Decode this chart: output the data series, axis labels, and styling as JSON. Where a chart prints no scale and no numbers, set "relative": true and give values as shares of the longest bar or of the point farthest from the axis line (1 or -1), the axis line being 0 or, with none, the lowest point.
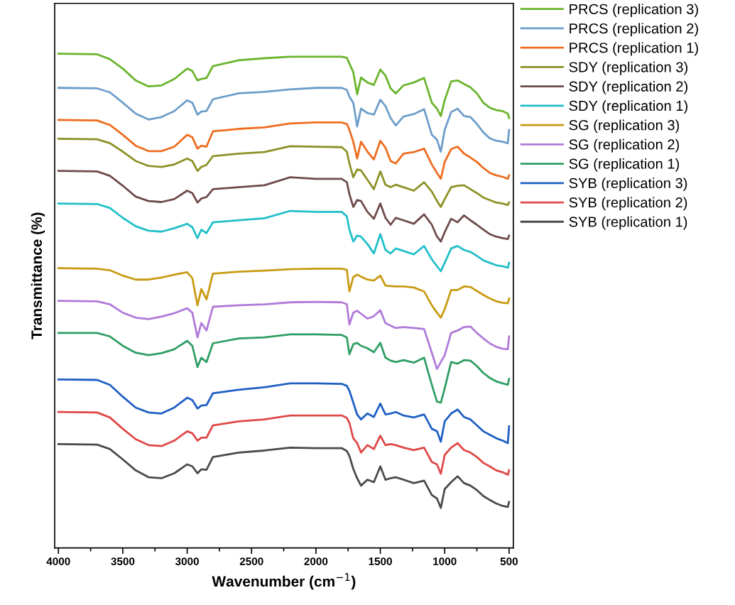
{
  "chart_data": {
    "type": "line",
    "xlabel": "Wavenumber (cm$^{−1}$)",
    "ylabel": "Transmittance (%)",
    "relative": true,
    "legend": "right",
    "tick_labels": "x",
    "line_style": "solid",
    "xlim": [
      4029,
      467
    ],
    "xticks": [
      4000,
      {
        "value": 3750,
        "label": null
      },
      3500,
      {
        "value": 3250,
        "label": null
      },
      3000,
      {
        "value": 2750,
        "label": null
      },
      2500,
      {
        "value": 2250,
        "label": null
      },
      2000,
      {
        "value": 1750,
        "label": null
      },
      1500,
      {
        "value": 1250,
        "label": null
      },
      1000,
      {
        "value": 750,
        "label": null
      },
      500
    ],
    "x": [
      4000,
      3700,
      3600,
      3500,
      3400,
      3300,
      3200,
      3100,
      3000,
      2960,
      2920,
      2890,
      2850,
      2800,
      2600,
      2400,
      2200,
      2000,
      1800,
      1760,
      1740,
      1710,
      1680,
      1650,
      1600,
      1550,
      1500,
      1460,
      1420,
      1380,
      1320,
      1240,
      1160,
      1100,
      1060,
      1030,
      1000,
      950,
      900,
      850,
      800,
      750,
      700,
      650,
      600,
      550,
      510,
      500
    ],
    "series": [
      {
        "name": "PRCS (replication 3)",
        "color": "#6ab42d",
        "values": [
          1.0,
          0.999,
          0.989,
          0.97,
          0.946,
          0.934,
          0.936,
          0.949,
          0.97,
          0.965,
          0.946,
          0.949,
          0.951,
          0.975,
          0.987,
          0.991,
          0.994,
          0.994,
          0.994,
          0.992,
          0.98,
          0.963,
          0.918,
          0.952,
          0.942,
          0.937,
          0.968,
          0.956,
          0.93,
          0.92,
          0.936,
          0.942,
          0.951,
          0.901,
          0.889,
          0.874,
          0.906,
          0.944,
          0.946,
          0.939,
          0.932,
          0.92,
          0.901,
          0.891,
          0.886,
          0.884,
          0.879,
          0.87
        ]
      },
      {
        "name": "PRCS (replication 2)",
        "color": "#6c9dc9",
        "values": [
          0.931,
          0.93,
          0.922,
          0.901,
          0.879,
          0.867,
          0.872,
          0.884,
          0.906,
          0.901,
          0.877,
          0.883,
          0.884,
          0.908,
          0.92,
          0.923,
          0.928,
          0.931,
          0.931,
          0.927,
          0.913,
          0.901,
          0.853,
          0.889,
          0.88,
          0.877,
          0.907,
          0.894,
          0.87,
          0.855,
          0.873,
          0.878,
          0.888,
          0.836,
          0.826,
          0.802,
          0.846,
          0.882,
          0.889,
          0.874,
          0.872,
          0.858,
          0.841,
          0.829,
          0.824,
          0.822,
          0.819,
          0.846
        ]
      },
      {
        "name": "PRCS (replication 1)",
        "color": "#ee6c1e",
        "values": [
          0.866,
          0.865,
          0.856,
          0.836,
          0.814,
          0.803,
          0.803,
          0.812,
          0.836,
          0.831,
          0.808,
          0.814,
          0.812,
          0.843,
          0.848,
          0.851,
          0.859,
          0.861,
          0.861,
          0.858,
          0.846,
          0.822,
          0.788,
          0.822,
          0.802,
          0.786,
          0.824,
          0.81,
          0.783,
          0.778,
          0.798,
          0.801,
          0.808,
          0.776,
          0.759,
          0.747,
          0.781,
          0.807,
          0.812,
          0.798,
          0.79,
          0.781,
          0.769,
          0.759,
          0.754,
          0.751,
          0.747,
          0.754
        ]
      },
      {
        "name": "SDY (replication 3)",
        "color": "#8c9125",
        "values": [
          0.828,
          0.827,
          0.819,
          0.802,
          0.783,
          0.773,
          0.771,
          0.776,
          0.788,
          0.783,
          0.763,
          0.771,
          0.775,
          0.793,
          0.798,
          0.801,
          0.813,
          0.812,
          0.811,
          0.802,
          0.778,
          0.75,
          0.766,
          0.764,
          0.745,
          0.726,
          0.762,
          0.735,
          0.73,
          0.735,
          0.73,
          0.723,
          0.74,
          0.721,
          0.702,
          0.69,
          0.706,
          0.73,
          0.733,
          0.734,
          0.726,
          0.718,
          0.709,
          0.704,
          0.699,
          0.697,
          0.694,
          0.699
        ]
      },
      {
        "name": "SDY (replication 2)",
        "color": "#6e4a4a",
        "values": [
          0.763,
          0.762,
          0.753,
          0.733,
          0.711,
          0.702,
          0.7,
          0.706,
          0.723,
          0.718,
          0.699,
          0.707,
          0.71,
          0.726,
          0.73,
          0.734,
          0.75,
          0.747,
          0.747,
          0.74,
          0.716,
          0.69,
          0.704,
          0.702,
          0.68,
          0.666,
          0.697,
          0.668,
          0.654,
          0.668,
          0.663,
          0.656,
          0.675,
          0.654,
          0.63,
          0.62,
          0.639,
          0.666,
          0.659,
          0.673,
          0.663,
          0.654,
          0.644,
          0.635,
          0.63,
          0.627,
          0.625,
          0.632
        ]
      },
      {
        "name": "SDY (replication 1)",
        "color": "#21bfc9",
        "values": [
          0.697,
          0.696,
          0.688,
          0.668,
          0.651,
          0.642,
          0.64,
          0.647,
          0.656,
          0.649,
          0.627,
          0.644,
          0.637,
          0.659,
          0.663,
          0.667,
          0.682,
          0.68,
          0.68,
          0.671,
          0.644,
          0.62,
          0.632,
          0.63,
          0.615,
          0.596,
          0.635,
          0.603,
          0.596,
          0.606,
          0.601,
          0.594,
          0.611,
          0.584,
          0.57,
          0.56,
          0.577,
          0.606,
          0.611,
          0.603,
          0.599,
          0.591,
          0.582,
          0.577,
          0.572,
          0.57,
          0.567,
          0.577
        ]
      },
      {
        "name": "SG (replication 3)",
        "color": "#c99a12",
        "values": [
          0.566,
          0.565,
          0.562,
          0.551,
          0.543,
          0.543,
          0.547,
          0.553,
          0.558,
          0.546,
          0.491,
          0.524,
          0.503,
          0.555,
          0.559,
          0.561,
          0.564,
          0.565,
          0.565,
          0.563,
          0.519,
          0.548,
          0.553,
          0.549,
          0.543,
          0.541,
          0.551,
          0.531,
          0.53,
          0.529,
          0.529,
          0.527,
          0.519,
          0.491,
          0.476,
          0.466,
          0.483,
          0.522,
          0.522,
          0.529,
          0.528,
          0.52,
          0.512,
          0.505,
          0.499,
          0.496,
          0.495,
          0.505
        ]
      },
      {
        "name": "SG (replication 2)",
        "color": "#b07ad8",
        "values": [
          0.5,
          0.499,
          0.493,
          0.476,
          0.466,
          0.463,
          0.468,
          0.475,
          0.485,
          0.476,
          0.426,
          0.455,
          0.44,
          0.488,
          0.491,
          0.493,
          0.497,
          0.498,
          0.497,
          0.493,
          0.452,
          0.476,
          0.48,
          0.474,
          0.464,
          0.469,
          0.481,
          0.455,
          0.45,
          0.445,
          0.447,
          0.445,
          0.443,
          0.395,
          0.362,
          0.376,
          0.39,
          0.435,
          0.44,
          0.447,
          0.448,
          0.435,
          0.424,
          0.414,
          0.407,
          0.403,
          0.402,
          0.428
        ]
      },
      {
        "name": "SG (replication 1)",
        "color": "#2f9e63",
        "values": [
          0.435,
          0.435,
          0.428,
          0.409,
          0.395,
          0.39,
          0.394,
          0.402,
          0.419,
          0.409,
          0.366,
          0.385,
          0.376,
          0.414,
          0.424,
          0.426,
          0.432,
          0.432,
          0.431,
          0.426,
          0.392,
          0.412,
          0.415,
          0.409,
          0.404,
          0.396,
          0.415,
          0.385,
          0.379,
          0.376,
          0.38,
          0.375,
          0.385,
          0.33,
          0.296,
          0.294,
          0.323,
          0.376,
          0.373,
          0.38,
          0.379,
          0.368,
          0.354,
          0.344,
          0.337,
          0.333,
          0.33,
          0.342
        ]
      },
      {
        "name": "SYB (replication 3)",
        "color": "#1f5fc4",
        "values": [
          0.341,
          0.34,
          0.33,
          0.306,
          0.284,
          0.274,
          0.272,
          0.284,
          0.304,
          0.299,
          0.282,
          0.288,
          0.289,
          0.313,
          0.32,
          0.325,
          0.333,
          0.333,
          0.332,
          0.328,
          0.318,
          0.294,
          0.27,
          0.26,
          0.272,
          0.265,
          0.292,
          0.27,
          0.272,
          0.275,
          0.268,
          0.264,
          0.27,
          0.241,
          0.236,
          0.215,
          0.256,
          0.272,
          0.28,
          0.265,
          0.26,
          0.248,
          0.236,
          0.229,
          0.222,
          0.217,
          0.212,
          0.246
        ]
      },
      {
        "name": "SYB (replication 2)",
        "color": "#e04848",
        "values": [
          0.275,
          0.274,
          0.264,
          0.241,
          0.22,
          0.208,
          0.206,
          0.217,
          0.236,
          0.232,
          0.217,
          0.223,
          0.223,
          0.248,
          0.256,
          0.26,
          0.268,
          0.268,
          0.268,
          0.263,
          0.253,
          0.222,
          0.212,
          0.193,
          0.208,
          0.2,
          0.227,
          0.208,
          0.21,
          0.208,
          0.203,
          0.198,
          0.203,
          0.174,
          0.169,
          0.15,
          0.188,
          0.203,
          0.212,
          0.198,
          0.193,
          0.184,
          0.172,
          0.165,
          0.157,
          0.153,
          0.148,
          0.157
        ]
      },
      {
        "name": "SYB (replication 1)",
        "color": "#4a4a4a",
        "values": [
          0.21,
          0.209,
          0.2,
          0.179,
          0.157,
          0.143,
          0.141,
          0.151,
          0.169,
          0.165,
          0.151,
          0.159,
          0.158,
          0.184,
          0.193,
          0.197,
          0.203,
          0.202,
          0.202,
          0.196,
          0.186,
          0.16,
          0.141,
          0.126,
          0.138,
          0.133,
          0.165,
          0.138,
          0.141,
          0.143,
          0.138,
          0.131,
          0.136,
          0.107,
          0.1,
          0.081,
          0.119,
          0.133,
          0.145,
          0.131,
          0.126,
          0.117,
          0.105,
          0.097,
          0.09,
          0.085,
          0.083,
          0.093
        ]
      }
    ]
  }
}
